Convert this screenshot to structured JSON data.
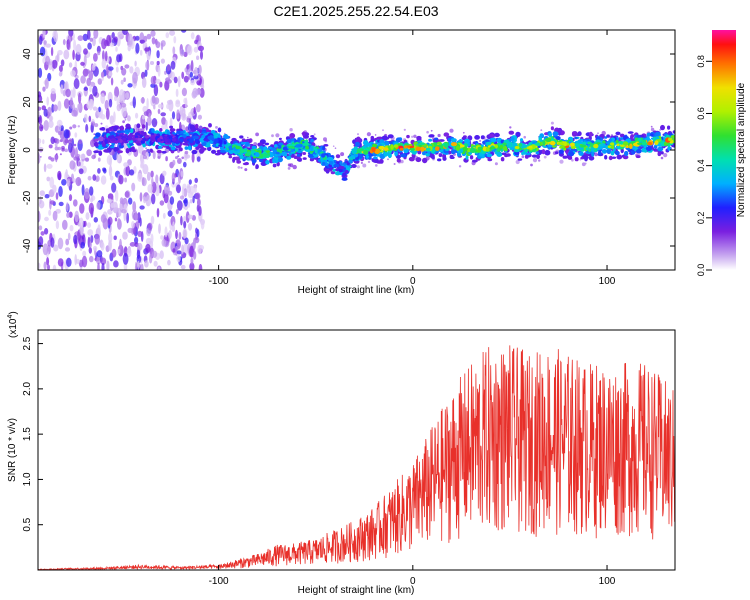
{
  "title": "C2E1.2025.255.22.54.E03",
  "chart_data": [
    {
      "type": "heatmap",
      "name": "spectrogram",
      "xlabel": "Height of straight line (km)",
      "ylabel": "Frequency (Hz)",
      "xlim": [
        -193,
        135
      ],
      "ylim": [
        -50,
        50
      ],
      "x_ticks": [
        -100,
        0,
        100
      ],
      "x_tick_labels": [
        "-100",
        "0",
        "100"
      ],
      "y_ticks": [
        -40,
        -20,
        0,
        20,
        40
      ],
      "y_tick_labels": [
        "-40",
        "-20",
        "0",
        "20",
        "40"
      ],
      "noise_region_x": [
        -193,
        -108
      ],
      "trace": {
        "x": [
          -160,
          -140,
          -120,
          -105,
          -95,
          -85,
          -75,
          -65,
          -55,
          -45,
          -40,
          -35,
          -30,
          -20,
          -10,
          0,
          10,
          20,
          30,
          40,
          50,
          60,
          70,
          80,
          90,
          100,
          110,
          120,
          130
        ],
        "freq": [
          4,
          5,
          4,
          5,
          2,
          -1,
          -2,
          0,
          2,
          -3,
          -6,
          -9,
          -1,
          0,
          1,
          1,
          1,
          2,
          0,
          1,
          2,
          1,
          4,
          2,
          1,
          2,
          2,
          3,
          4
        ],
        "amplitude": [
          0.2,
          0.22,
          0.25,
          0.35,
          0.45,
          0.5,
          0.55,
          0.45,
          0.5,
          0.45,
          0.3,
          0.25,
          0.6,
          0.85,
          0.9,
          0.8,
          0.75,
          0.8,
          0.7,
          0.7,
          0.6,
          0.65,
          0.7,
          0.8,
          0.65,
          0.6,
          0.7,
          0.75,
          0.8
        ]
      },
      "colorbar": {
        "label": "Normalized spectral amplitude",
        "range": [
          0,
          0.92
        ],
        "ticks": [
          0.0,
          0.2,
          0.4,
          0.6,
          0.8
        ],
        "tick_labels": [
          "0.0",
          "0.2",
          "0.4",
          "0.6",
          "0.8"
        ]
      }
    },
    {
      "type": "line",
      "name": "snr",
      "xlabel": "Height of straight line (km)",
      "ylabel": "SNR (10 * v/v)",
      "scale_label": "(x10",
      "scale_exponent": "4",
      "scale_close": ")",
      "xlim": [
        -193,
        135
      ],
      "ylim": [
        0,
        2.65
      ],
      "x_ticks": [
        -100,
        0,
        100
      ],
      "x_tick_labels": [
        "-100",
        "0",
        "100"
      ],
      "y_ticks": [
        0.5,
        1.0,
        1.5,
        2.0,
        2.5
      ],
      "y_tick_labels": [
        "0.5",
        "1.0",
        "1.5",
        "2.0",
        "2.5"
      ],
      "series": [
        {
          "name": "SNR",
          "color": "#e8302a",
          "x": [
            -193,
            -180,
            -160,
            -140,
            -120,
            -100,
            -90,
            -80,
            -70,
            -60,
            -50,
            -40,
            -30,
            -20,
            -10,
            0,
            10,
            20,
            30,
            40,
            50,
            60,
            70,
            80,
            90,
            100,
            110,
            120,
            130,
            135
          ],
          "envelope": [
            0.01,
            0.02,
            0.03,
            0.06,
            0.04,
            0.06,
            0.12,
            0.18,
            0.28,
            0.3,
            0.35,
            0.45,
            0.55,
            0.7,
            0.95,
            1.2,
            1.6,
            2.0,
            2.3,
            2.5,
            2.5,
            2.4,
            2.5,
            2.4,
            2.3,
            2.3,
            2.3,
            2.3,
            2.1,
            2.0
          ]
        }
      ]
    }
  ]
}
